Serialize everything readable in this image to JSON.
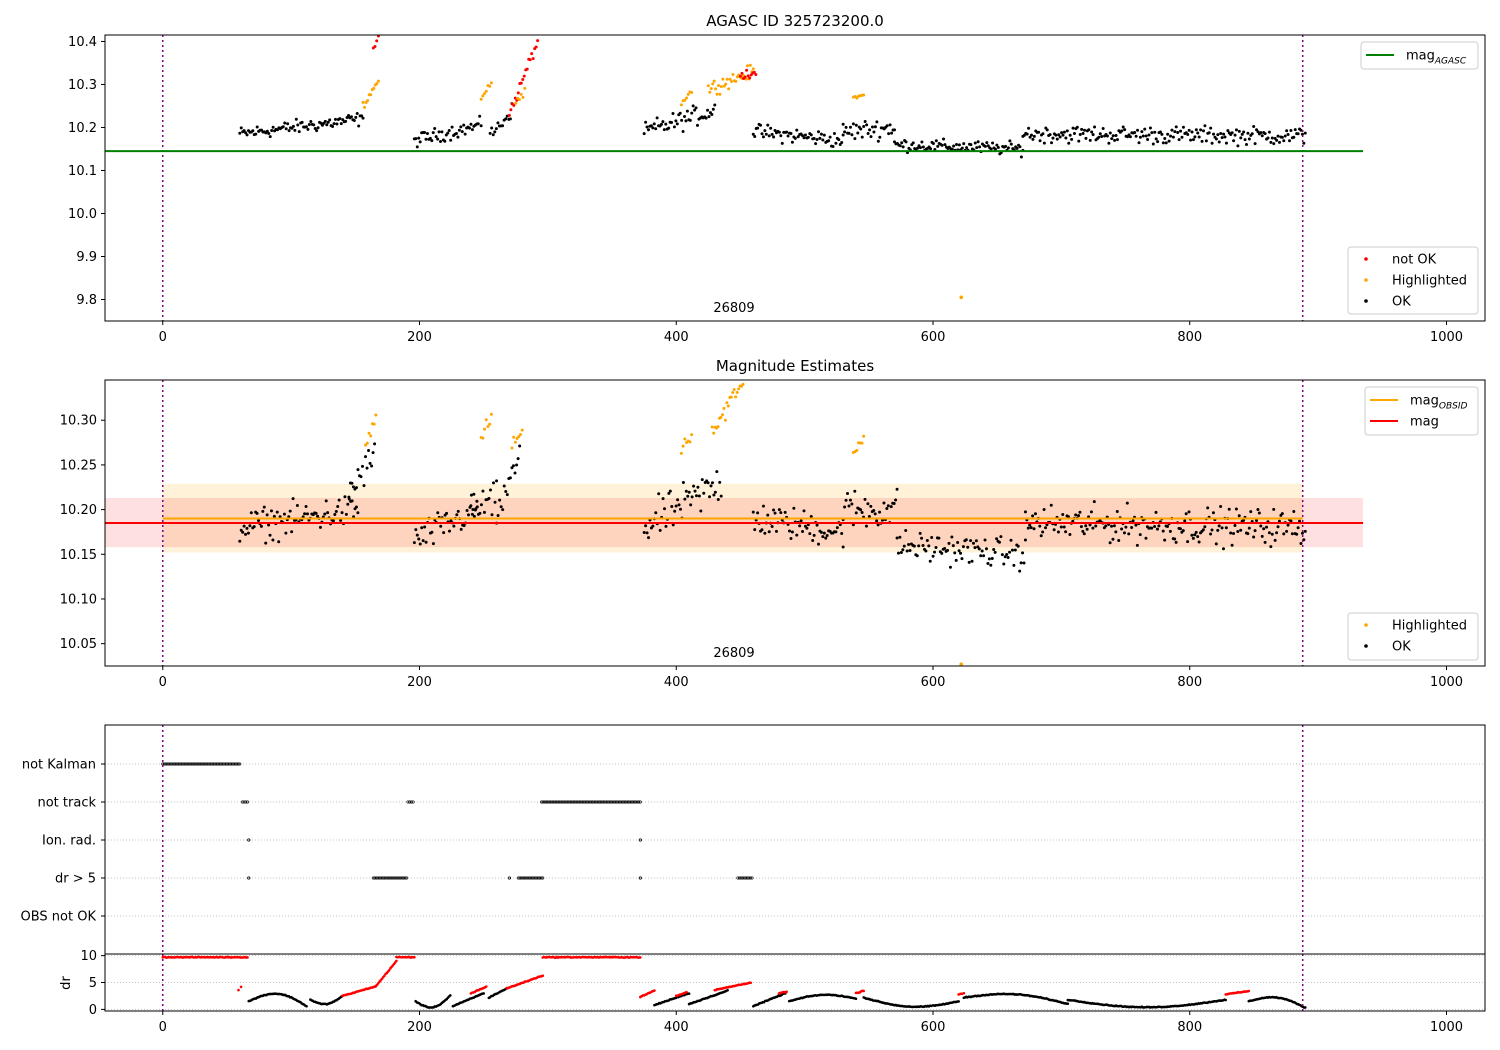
{
  "chart_data": [
    {
      "type": "scatter",
      "title": "AGASC ID 325723200.0",
      "xlim": [
        -45,
        1030
      ],
      "ylim": [
        9.75,
        10.415
      ],
      "x_ticks": [
        0,
        200,
        400,
        600,
        800,
        1000
      ],
      "y_ticks": [
        9.8,
        9.9,
        10.0,
        10.1,
        10.2,
        10.3,
        10.4
      ],
      "y_tick_labels": [
        "9.8",
        "9.9",
        "10.0",
        "10.1",
        "10.2",
        "10.3",
        "10.4"
      ],
      "obsid_label": "26809",
      "obsid_label_x": 445,
      "interval_start": 0,
      "interval_end": 888,
      "mag_agasc": {
        "name": "mag",
        "subscript": "AGASC",
        "value": 10.145,
        "x_range": [
          -45,
          935
        ],
        "color": "#008000"
      },
      "legend_top": [
        {
          "label": "mag",
          "subscript": "AGASC",
          "color": "#008000"
        }
      ],
      "legend_bottom": [
        {
          "label": "not OK",
          "color": "#ff0000"
        },
        {
          "label": "Highlighted",
          "color": "#ffa500"
        },
        {
          "label": "OK",
          "color": "#000000"
        }
      ],
      "segments": [
        {
          "x": [
            60,
            156
          ],
          "base": 10.185,
          "end": 10.22,
          "noise": 0.018
        },
        {
          "x": [
            156,
            168
          ],
          "base": 10.25,
          "end": 10.31,
          "noise": 0.01,
          "status": "highlighted"
        },
        {
          "x": [
            164,
            168
          ],
          "base": 10.38,
          "end": 10.41,
          "noise": 0.005,
          "status": "notok"
        },
        {
          "x": [
            196,
            248
          ],
          "base": 10.17,
          "end": 10.205,
          "noise": 0.018
        },
        {
          "x": [
            248,
            256
          ],
          "base": 10.27,
          "end": 10.305,
          "noise": 0.008,
          "status": "highlighted"
        },
        {
          "x": [
            255,
            272
          ],
          "base": 10.18,
          "end": 10.24,
          "noise": 0.018
        },
        {
          "x": [
            270,
            292
          ],
          "base": 10.23,
          "end": 10.4,
          "noise": 0.015,
          "status": "notok"
        },
        {
          "x": [
            275,
            282
          ],
          "base": 10.26,
          "end": 10.28,
          "noise": 0.01,
          "status": "highlighted"
        },
        {
          "x": [
            375,
            430
          ],
          "base": 10.19,
          "end": 10.24,
          "noise": 0.025
        },
        {
          "x": [
            404,
            412
          ],
          "base": 10.26,
          "end": 10.285,
          "noise": 0.01,
          "status": "highlighted"
        },
        {
          "x": [
            425,
            460
          ],
          "base": 10.29,
          "end": 10.33,
          "noise": 0.018,
          "status": "highlighted"
        },
        {
          "x": [
            450,
            462
          ],
          "base": 10.32,
          "end": 10.33,
          "noise": 0.012,
          "status": "notok"
        },
        {
          "x": [
            460,
            530
          ],
          "base": 10.19,
          "end": 10.17,
          "noise": 0.02
        },
        {
          "x": [
            530,
            570
          ],
          "base": 10.19,
          "end": 10.2,
          "noise": 0.025
        },
        {
          "x": [
            538,
            546
          ],
          "base": 10.27,
          "end": 10.275,
          "noise": 0.005,
          "status": "highlighted"
        },
        {
          "x": [
            570,
            670
          ],
          "base": 10.16,
          "end": 10.15,
          "noise": 0.016
        },
        {
          "x": [
            670,
            890
          ],
          "base": 10.185,
          "end": 10.18,
          "noise": 0.022
        }
      ],
      "extra_points": [
        {
          "x": 622,
          "y": 9.805,
          "status": "highlighted"
        }
      ]
    },
    {
      "type": "scatter",
      "title": "Magnitude Estimates",
      "xlim": [
        -45,
        1030
      ],
      "ylim": [
        10.025,
        10.345
      ],
      "x_ticks": [
        0,
        200,
        400,
        600,
        800,
        1000
      ],
      "y_ticks": [
        10.05,
        10.1,
        10.15,
        10.2,
        10.25,
        10.3
      ],
      "y_tick_labels": [
        "10.05",
        "10.10",
        "10.15",
        "10.20",
        "10.25",
        "10.30"
      ],
      "obsid_label": "26809",
      "obsid_label_x": 445,
      "interval_start": 0,
      "interval_end": 888,
      "mag": {
        "value": 10.185,
        "band": [
          10.158,
          10.213
        ],
        "x_range": [
          -45,
          935
        ],
        "color": "#ff0000"
      },
      "mag_obsid": {
        "value": 10.19,
        "band": [
          10.152,
          10.229
        ],
        "x_range": [
          0,
          888
        ],
        "color": "#ffa500"
      },
      "legend_top": [
        {
          "label": "mag",
          "subscript": "OBSID",
          "color": "#ffa500"
        },
        {
          "label": "mag",
          "subscript": "",
          "color": "#ff0000"
        }
      ],
      "legend_bottom": [
        {
          "label": "Highlighted",
          "color": "#ffa500"
        },
        {
          "label": "OK",
          "color": "#000000"
        }
      ],
      "segments": [
        {
          "x": [
            60,
            152
          ],
          "base": 10.18,
          "end": 10.2,
          "noise": 0.02
        },
        {
          "x": [
            145,
            165
          ],
          "base": 10.22,
          "end": 10.26,
          "noise": 0.02
        },
        {
          "x": [
            158,
            166
          ],
          "base": 10.27,
          "end": 10.305,
          "noise": 0.008,
          "status": "highlighted"
        },
        {
          "x": [
            196,
            245
          ],
          "base": 10.165,
          "end": 10.2,
          "noise": 0.02
        },
        {
          "x": [
            240,
            260
          ],
          "base": 10.2,
          "end": 10.21,
          "noise": 0.022
        },
        {
          "x": [
            248,
            256
          ],
          "base": 10.28,
          "end": 10.305,
          "noise": 0.008,
          "status": "highlighted"
        },
        {
          "x": [
            260,
            278
          ],
          "base": 10.19,
          "end": 10.26,
          "noise": 0.02
        },
        {
          "x": [
            272,
            280
          ],
          "base": 10.27,
          "end": 10.29,
          "noise": 0.008,
          "status": "highlighted"
        },
        {
          "x": [
            375,
            435
          ],
          "base": 10.18,
          "end": 10.23,
          "noise": 0.025
        },
        {
          "x": [
            404,
            412
          ],
          "base": 10.27,
          "end": 10.285,
          "noise": 0.01,
          "status": "highlighted"
        },
        {
          "x": [
            428,
            452
          ],
          "base": 10.29,
          "end": 10.34,
          "noise": 0.015,
          "status": "highlighted"
        },
        {
          "x": [
            460,
            530
          ],
          "base": 10.19,
          "end": 10.175,
          "noise": 0.02
        },
        {
          "x": [
            530,
            572
          ],
          "base": 10.2,
          "end": 10.2,
          "noise": 0.025
        },
        {
          "x": [
            538,
            546
          ],
          "base": 10.265,
          "end": 10.28,
          "noise": 0.008,
          "status": "highlighted"
        },
        {
          "x": [
            572,
            672
          ],
          "base": 10.16,
          "end": 10.15,
          "noise": 0.018
        },
        {
          "x": [
            672,
            890
          ],
          "base": 10.185,
          "end": 10.18,
          "noise": 0.022
        }
      ],
      "extra_points": [
        {
          "x": 622,
          "y": 10.027,
          "status": "highlighted"
        }
      ]
    },
    {
      "type": "scatter",
      "title": "",
      "xlim": [
        -45,
        1030
      ],
      "x_ticks": [
        0,
        200,
        400,
        600,
        800,
        1000
      ],
      "interval_start": 0,
      "interval_end": 888,
      "flag_rows": [
        "not Kalman",
        "not track",
        "Ion. rad.",
        "dr > 5",
        "OBS not OK"
      ],
      "flag_ranges": [
        {
          "row": 0,
          "x": [
            0,
            60
          ]
        },
        {
          "row": 1,
          "x": [
            62,
            66
          ]
        },
        {
          "row": 1,
          "x": [
            191,
            195
          ]
        },
        {
          "row": 1,
          "x": [
            295,
            372
          ]
        },
        {
          "row": 2,
          "x": [
            67,
            67
          ]
        },
        {
          "row": 2,
          "x": [
            372,
            372
          ]
        },
        {
          "row": 3,
          "x": [
            67,
            67
          ]
        },
        {
          "row": 3,
          "x": [
            164,
            190
          ]
        },
        {
          "row": 3,
          "x": [
            270,
            270
          ]
        },
        {
          "row": 3,
          "x": [
            277,
            296
          ]
        },
        {
          "row": 3,
          "x": [
            372,
            372
          ]
        },
        {
          "row": 3,
          "x": [
            448,
            459
          ]
        }
      ],
      "dr_axis": {
        "ylabel": "dr",
        "ylim": [
          -0.3,
          10.3
        ],
        "y_ticks": [
          0,
          5,
          10
        ],
        "y_tick_labels": [
          "0",
          "5",
          "10"
        ]
      },
      "dr_segments": [
        {
          "x": [
            0,
            66
          ],
          "start": 9.7,
          "end": 9.7,
          "status": "notok"
        },
        {
          "x": [
            59,
            61
          ],
          "start": 3.6,
          "end": 4.2,
          "status": "notok"
        },
        {
          "x": [
            67,
            112
          ],
          "start": 1.5,
          "end": 0.6,
          "peak": 2.9
        },
        {
          "x": [
            115,
            140
          ],
          "start": 1.8,
          "end": 2.5,
          "peak": 1.0
        },
        {
          "x": [
            140,
            166
          ],
          "start": 2.5,
          "end": 4.3,
          "status": "notok"
        },
        {
          "x": [
            166,
            182
          ],
          "start": 4.3,
          "end": 9.0,
          "status": "notok"
        },
        {
          "x": [
            182,
            196
          ],
          "start": 9.7,
          "end": 9.7,
          "status": "notok"
        },
        {
          "x": [
            197,
            224
          ],
          "start": 1.5,
          "end": 2.6,
          "peak": 0.4
        },
        {
          "x": [
            226,
            250
          ],
          "start": 0.6,
          "end": 3.0
        },
        {
          "x": [
            240,
            252
          ],
          "start": 3.0,
          "end": 4.2,
          "status": "notok"
        },
        {
          "x": [
            254,
            268
          ],
          "start": 2.2,
          "end": 3.9
        },
        {
          "x": [
            268,
            296
          ],
          "start": 3.9,
          "end": 6.3,
          "status": "notok"
        },
        {
          "x": [
            296,
            372
          ],
          "start": 9.7,
          "end": 9.7,
          "status": "notok"
        },
        {
          "x": [
            372,
            383
          ],
          "start": 2.3,
          "end": 3.5,
          "status": "notok"
        },
        {
          "x": [
            383,
            410
          ],
          "start": 0.8,
          "end": 3.0
        },
        {
          "x": [
            400,
            408
          ],
          "start": 2.5,
          "end": 3.2,
          "status": "notok"
        },
        {
          "x": [
            410,
            440
          ],
          "start": 1.0,
          "end": 3.5
        },
        {
          "x": [
            430,
            458
          ],
          "start": 3.6,
          "end": 5.0,
          "status": "notok"
        },
        {
          "x": [
            460,
            485
          ],
          "start": 0.6,
          "end": 3.0
        },
        {
          "x": [
            480,
            486
          ],
          "start": 3.0,
          "end": 3.3,
          "status": "notok"
        },
        {
          "x": [
            488,
            540
          ],
          "start": 1.5,
          "end": 2.0,
          "peak": 2.7
        },
        {
          "x": [
            540,
            546
          ],
          "start": 3.0,
          "end": 3.5,
          "status": "notok"
        },
        {
          "x": [
            546,
            620
          ],
          "start": 2.2,
          "end": 1.5,
          "peak": 0.5
        },
        {
          "x": [
            620,
            624
          ],
          "start": 2.8,
          "end": 3.0,
          "status": "notok"
        },
        {
          "x": [
            624,
            705
          ],
          "start": 2.2,
          "end": 1.0,
          "peak": 2.8
        },
        {
          "x": [
            705,
            828
          ],
          "start": 1.8,
          "end": 1.8,
          "peak": 0.4
        },
        {
          "x": [
            828,
            846
          ],
          "start": 2.8,
          "end": 3.4,
          "status": "notok"
        },
        {
          "x": [
            846,
            890
          ],
          "start": 1.5,
          "end": 0.3,
          "peak": 2.2
        }
      ]
    }
  ]
}
